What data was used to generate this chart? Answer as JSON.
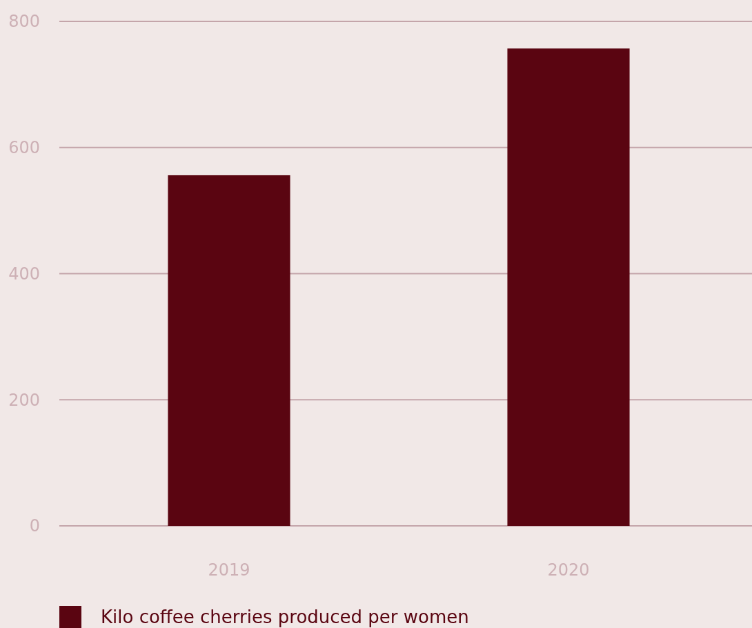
{
  "chart_data": {
    "type": "bar",
    "categories": [
      "2019",
      "2020"
    ],
    "series": [
      {
        "name": "Kilo coffee cherries produced per women",
        "color": "#5a0511",
        "values": [
          556,
          757
        ]
      }
    ],
    "ylim": [
      0,
      800
    ],
    "yticks": [
      0,
      200,
      400,
      600,
      800
    ],
    "grid": "y",
    "legend": "bottom"
  }
}
